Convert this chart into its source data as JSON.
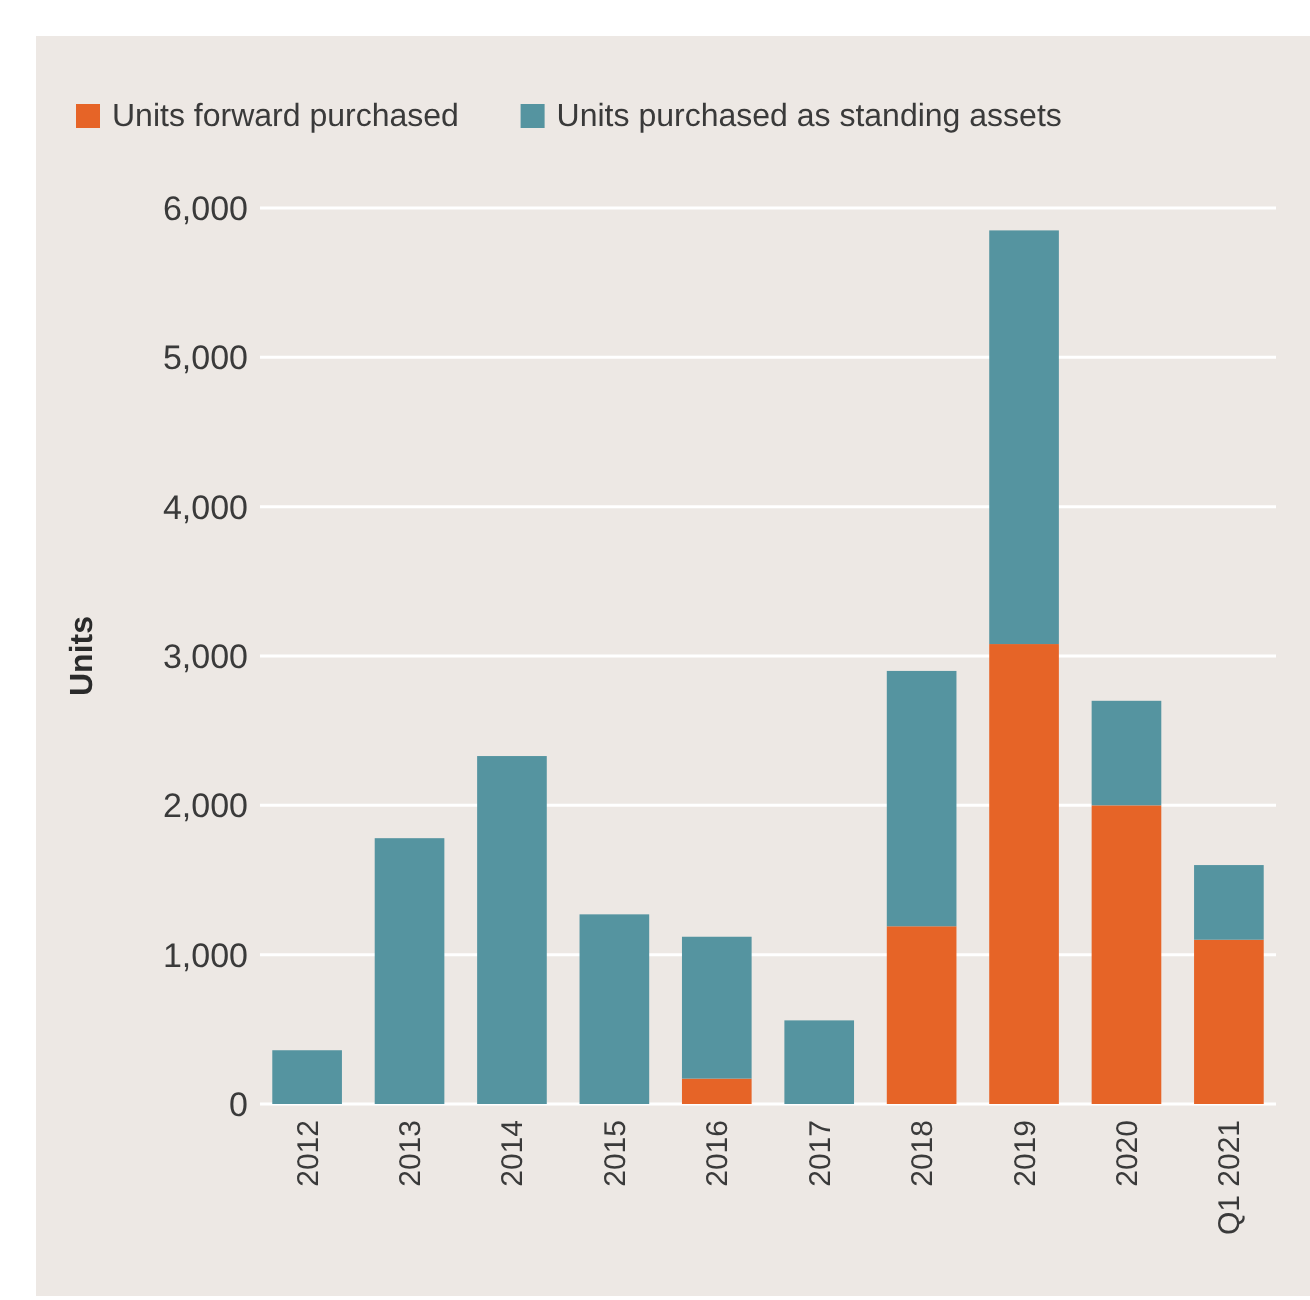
{
  "chart_data": {
    "type": "bar",
    "stacked": true,
    "ylabel": "Units",
    "categories": [
      "2012",
      "2013",
      "2014",
      "2015",
      "2016",
      "2017",
      "2018",
      "2019",
      "2020",
      "Q1 2021"
    ],
    "series": [
      {
        "name": "Units forward purchased",
        "color": "#e66427",
        "values": [
          0,
          0,
          0,
          0,
          170,
          0,
          1190,
          3080,
          2000,
          1100
        ]
      },
      {
        "name": "Units purchased as standing assets",
        "color": "#5594a0",
        "values": [
          360,
          1780,
          2330,
          1270,
          950,
          560,
          1710,
          2770,
          700,
          500
        ]
      }
    ],
    "ylim": [
      0,
      6000
    ],
    "yticks": [
      {
        "value": 0,
        "label": "0"
      },
      {
        "value": 1000,
        "label": "1,000"
      },
      {
        "value": 2000,
        "label": "2,000"
      },
      {
        "value": 3000,
        "label": "3,000"
      },
      {
        "value": 4000,
        "label": "4,000"
      },
      {
        "value": 5000,
        "label": "5,000"
      },
      {
        "value": 6000,
        "label": "6,000"
      }
    ],
    "grid": "y",
    "legend": "top left"
  }
}
